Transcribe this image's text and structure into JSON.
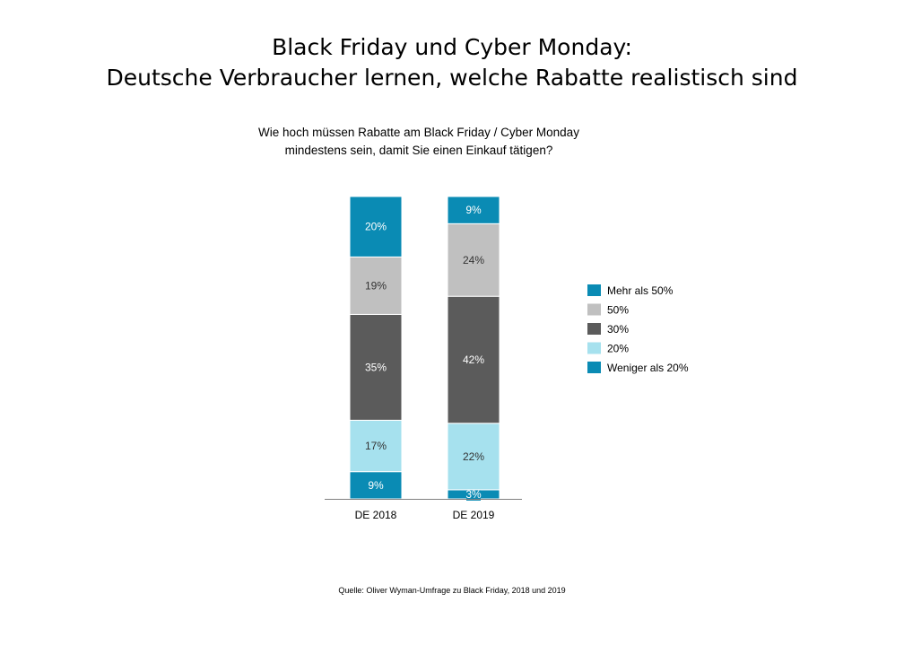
{
  "header": {
    "title_line1": "Black Friday und Cyber Monday:",
    "title_line2": "Deutsche Verbraucher lernen, welche Rabatte realistisch sind"
  },
  "chart_data": {
    "type": "bar",
    "stacked": true,
    "title": "Wie hoch müssen Rabatte am Black Friday / Cyber Monday mindestens sein, damit Sie einen Einkauf tätigen?",
    "title_line1": "Wie hoch müssen Rabatte am Black Friday / Cyber Monday",
    "title_line2": "mindestens sein, damit Sie einen Einkauf tätigen?",
    "categories": [
      "DE 2018",
      "DE 2019"
    ],
    "series": [
      {
        "name": "Weniger als 20%",
        "values": [
          9,
          3
        ],
        "color": "#0A8BB4",
        "label_color": "#ffffff"
      },
      {
        "name": "20%",
        "values": [
          17,
          22
        ],
        "color": "#A6E1EE",
        "label_color": "#333333"
      },
      {
        "name": "30%",
        "values": [
          35,
          42
        ],
        "color": "#5B5B5B",
        "label_color": "#ffffff"
      },
      {
        "name": "50%",
        "values": [
          19,
          24
        ],
        "color": "#C0C0C0",
        "label_color": "#333333"
      },
      {
        "name": "Mehr als 50%",
        "values": [
          20,
          9
        ],
        "color": "#0A8BB4",
        "label_color": "#ffffff"
      }
    ],
    "legend_order": [
      "Mehr als 50%",
      "50%",
      "30%",
      "20%",
      "Weniger als 20%"
    ],
    "ylim": [
      0,
      100
    ],
    "unit": "%",
    "legend_position": "right",
    "grid": false
  },
  "footer": {
    "source": "Quelle: Oliver Wyman-Umfrage zu Black Friday, 2018 und 2019"
  }
}
